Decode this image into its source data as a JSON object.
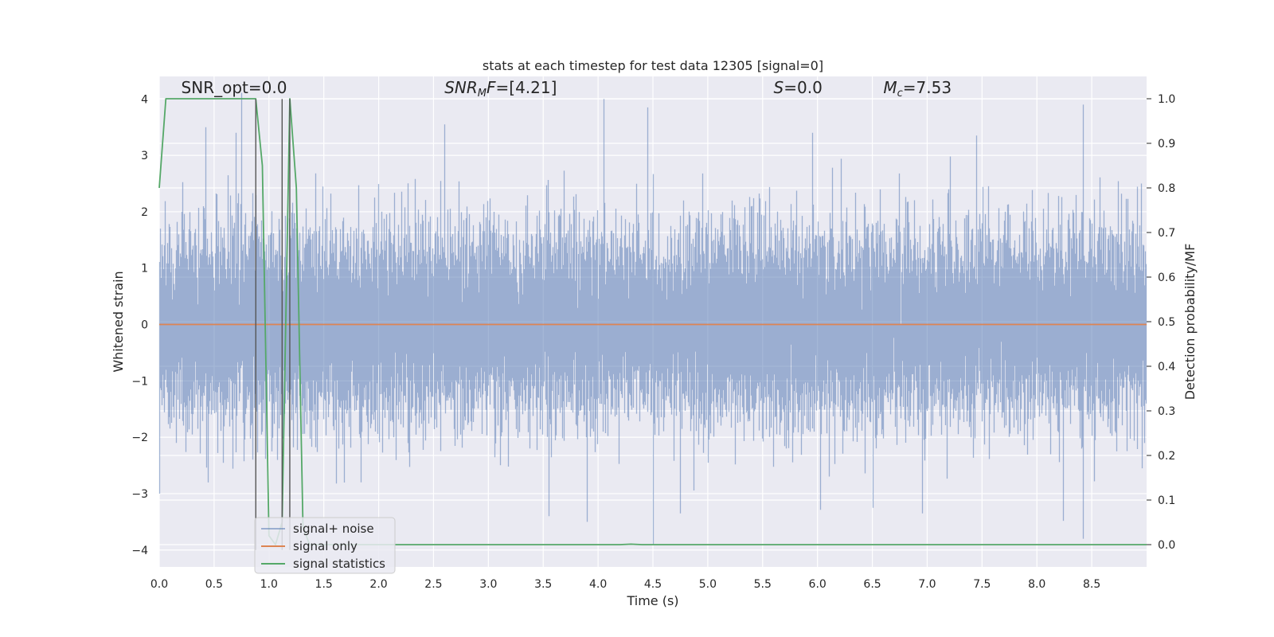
{
  "chart_data": {
    "type": "line",
    "title": "stats at each timestep for test data 12305 [signal=0]",
    "xlabel": "Time (s)",
    "ylabel": "Whitened strain",
    "y2label": "Detection probability/MF",
    "xlim": [
      0,
      9.0
    ],
    "ylim": [
      -4.3,
      4.4
    ],
    "y2lim": [
      -0.05,
      1.05
    ],
    "xticks": [
      0.0,
      0.5,
      1.0,
      1.5,
      2.0,
      2.5,
      3.0,
      3.5,
      4.0,
      4.5,
      5.0,
      5.5,
      6.0,
      6.5,
      7.0,
      7.5,
      8.0,
      8.5
    ],
    "xtick_labels": [
      "0.0",
      "0.5",
      "1.0",
      "1.5",
      "2.0",
      "2.5",
      "3.0",
      "3.5",
      "4.0",
      "4.5",
      "5.0",
      "5.5",
      "6.0",
      "6.5",
      "7.0",
      "7.5",
      "8.0",
      "8.5"
    ],
    "yticks": [
      4,
      3,
      2,
      1,
      0,
      -1,
      -2,
      -3,
      -4
    ],
    "ytick_labels": [
      "4",
      "3",
      "2",
      "1",
      "0",
      "−1",
      "−2",
      "−3",
      "−4"
    ],
    "y2ticks": [
      1.0,
      0.9,
      0.8,
      0.7,
      0.6,
      0.5,
      0.4,
      0.3,
      0.2,
      0.1,
      0.0
    ],
    "y2tick_labels": [
      "1.0",
      "0.9",
      "0.8",
      "0.7",
      "0.6",
      "0.5",
      "0.4",
      "0.3",
      "0.2",
      "0.1",
      "0.0"
    ],
    "grid": true,
    "legend_position": "lower-left",
    "annotations": [
      {
        "text": "SNR_opt=0.0",
        "x": 0.2,
        "y": 4.1
      },
      {
        "text": "SNR",
        "sub": "M",
        "tail": "F=[4.21]",
        "x": 2.6,
        "y": 4.1,
        "italic": true
      },
      {
        "text": "S",
        "tail": "=0.0",
        "x": 5.6,
        "y": 4.1,
        "italic": true
      },
      {
        "text": "M",
        "sub": "c",
        "tail": "=7.53",
        "x": 6.6,
        "y": 4.1,
        "italic": true
      }
    ],
    "vlines": [
      0.88,
      1.12,
      1.19
    ],
    "series": [
      {
        "name": "signal+ noise",
        "color": "#4c72b0",
        "alpha": 0.5,
        "axis": "left",
        "kind": "noise",
        "sample_rate": 2048,
        "sigma": 1.0,
        "spikes_max": [
          {
            "x": 0.42,
            "y": 3.5
          },
          {
            "x": 0.7,
            "y": 3.4
          },
          {
            "x": 2.6,
            "y": 3.55
          },
          {
            "x": 4.05,
            "y": 4.0
          },
          {
            "x": 4.45,
            "y": 3.85
          },
          {
            "x": 5.95,
            "y": 3.4
          },
          {
            "x": 7.45,
            "y": 3.35
          },
          {
            "x": 8.42,
            "y": 3.9
          },
          {
            "x": 8.95,
            "y": 2.5
          }
        ],
        "spikes_min": [
          {
            "x": 0.0,
            "y": -3.0
          },
          {
            "x": 3.55,
            "y": -3.4
          },
          {
            "x": 3.9,
            "y": -3.5
          },
          {
            "x": 4.5,
            "y": -3.9
          },
          {
            "x": 4.75,
            "y": -3.35
          },
          {
            "x": 6.5,
            "y": -3.25
          },
          {
            "x": 6.95,
            "y": -3.35
          },
          {
            "x": 8.42,
            "y": -3.8
          }
        ]
      },
      {
        "name": "signal only",
        "color": "#dd8452",
        "axis": "left",
        "x": [
          0.0,
          9.0
        ],
        "y": [
          0.0,
          0.0
        ]
      },
      {
        "name": "signal statistics",
        "color": "#55a868",
        "axis": "right",
        "x": [
          0.0,
          0.06,
          0.12,
          0.88,
          0.94,
          1.0,
          1.06,
          1.12,
          1.19,
          1.25,
          1.31,
          1.37,
          4.2,
          4.3,
          4.4,
          9.0
        ],
        "y": [
          0.8,
          1.0,
          1.0,
          1.0,
          0.85,
          0.02,
          0.0,
          0.05,
          1.0,
          0.8,
          0.04,
          0.0,
          0.0,
          0.001,
          0.0,
          0.0
        ]
      }
    ]
  }
}
